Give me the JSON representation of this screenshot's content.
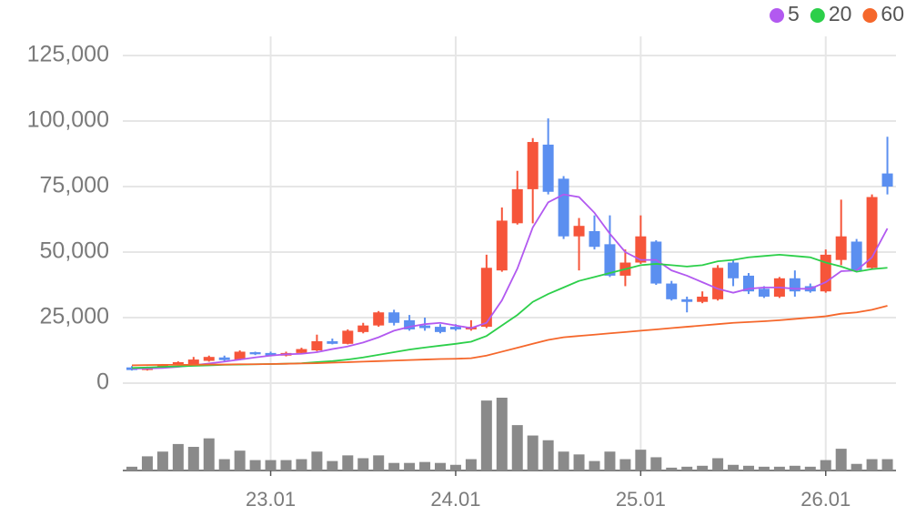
{
  "chart_data": {
    "type": "candlestick",
    "categories": [
      null,
      null,
      null,
      null,
      null,
      null,
      null,
      null,
      null,
      "23.01",
      null,
      null,
      null,
      null,
      null,
      null,
      null,
      null,
      null,
      null,
      null,
      "24.01",
      null,
      null,
      null,
      null,
      null,
      null,
      null,
      null,
      null,
      null,
      null,
      "25.01",
      null,
      null,
      null,
      null,
      null,
      null,
      null,
      null,
      null,
      null,
      null,
      "26.01",
      null,
      null,
      null,
      null
    ],
    "open": [
      6000,
      5000,
      6000,
      7000,
      7000,
      8500,
      9800,
      9000,
      11800,
      11500,
      10500,
      11500,
      12500,
      16000,
      15000,
      19500,
      22000,
      27000,
      24000,
      22000,
      21500,
      21500,
      20500,
      21500,
      43000,
      61000,
      74000,
      91000,
      78000,
      56000,
      58000,
      53000,
      41000,
      46000,
      54000,
      38000,
      32000,
      31000,
      32000,
      46000,
      41000,
      36000,
      33000,
      40000,
      37000,
      35000,
      47000,
      54000,
      44000,
      80000
    ],
    "high": [
      6500,
      6300,
      7300,
      8300,
      10000,
      10500,
      10500,
      12500,
      12000,
      12000,
      12000,
      13500,
      18500,
      17000,
      20500,
      23000,
      27500,
      28000,
      26000,
      25000,
      22500,
      22500,
      24000,
      49000,
      67000,
      81000,
      93500,
      101000,
      79000,
      63000,
      64000,
      64000,
      51000,
      64000,
      54500,
      39000,
      33000,
      35000,
      45000,
      47000,
      42000,
      37000,
      40500,
      43000,
      38000,
      51000,
      70000,
      55000,
      72000,
      94000
    ],
    "low": [
      4800,
      4800,
      5700,
      6700,
      6800,
      8200,
      8300,
      8700,
      10700,
      10200,
      10200,
      11200,
      12200,
      14800,
      14800,
      19000,
      21500,
      22000,
      20000,
      20000,
      19000,
      20000,
      20000,
      21000,
      42500,
      60500,
      61000,
      72000,
      55000,
      43000,
      51000,
      40500,
      37000,
      45500,
      37500,
      31500,
      27000,
      30500,
      31500,
      37000,
      34000,
      32500,
      32500,
      33000,
      34500,
      34500,
      45000,
      42500,
      43500,
      72000
    ],
    "close": [
      5000,
      6000,
      7000,
      8000,
      9000,
      10000,
      8800,
      12000,
      11000,
      10500,
      11500,
      13000,
      16000,
      15000,
      20000,
      22000,
      27000,
      23000,
      20500,
      21000,
      19500,
      20500,
      21500,
      44000,
      62000,
      74000,
      92000,
      73000,
      56000,
      60000,
      52000,
      41000,
      46000,
      56000,
      38000,
      32000,
      31000,
      33000,
      44000,
      40000,
      35000,
      33000,
      40000,
      35000,
      35000,
      49000,
      56000,
      43000,
      71000,
      75000
    ],
    "volume": [
      4,
      15,
      20,
      28,
      25,
      34,
      12,
      21,
      11,
      11,
      11,
      12,
      20,
      10,
      16,
      13,
      16,
      8,
      8,
      9,
      8,
      6,
      12,
      74,
      77,
      48,
      37,
      32,
      20,
      17,
      10,
      20,
      12,
      22,
      14,
      3,
      4,
      5,
      13,
      6,
      5,
      4,
      4,
      5,
      4,
      11,
      23,
      7,
      12,
      12
    ],
    "up_color": "#f6553a",
    "down_color": "#5b8ff0",
    "volume_color": "#8a8a8a",
    "series": [
      {
        "name": "5",
        "color": "#b259f0",
        "values": [
          5500,
          5600,
          5800,
          6200,
          6800,
          7500,
          8200,
          9000,
          9800,
          10500,
          11000,
          11200,
          11800,
          13000,
          14000,
          15500,
          17500,
          20000,
          21500,
          22500,
          23000,
          22000,
          21000,
          23000,
          31600,
          43700,
          59400,
          69000,
          72000,
          71000,
          65000,
          57000,
          50000,
          47000,
          47000,
          43000,
          41000,
          38500,
          36000,
          34500,
          36000,
          36500,
          36500,
          36000,
          36000,
          38500,
          42700,
          43000,
          48000,
          59000
        ]
      },
      {
        "name": "20",
        "color": "#2ccf4a",
        "values": [
          5800,
          6000,
          6200,
          6400,
          6600,
          6800,
          7000,
          7100,
          7200,
          7300,
          7400,
          7600,
          8000,
          8400,
          9000,
          9800,
          10800,
          11800,
          12800,
          13600,
          14300,
          15000,
          15800,
          18000,
          22000,
          26000,
          31000,
          34000,
          36500,
          39000,
          40500,
          42000,
          43500,
          45000,
          45500,
          45000,
          44500,
          45000,
          46500,
          47000,
          48000,
          48500,
          49000,
          48500,
          48000,
          46000,
          44500,
          42500,
          43500,
          44000
        ]
      },
      {
        "name": "60",
        "color": "#f5672b",
        "values": [
          6800,
          6900,
          7000,
          7000,
          7000,
          7100,
          7100,
          7200,
          7200,
          7300,
          7400,
          7500,
          7600,
          7800,
          8000,
          8200,
          8400,
          8600,
          8800,
          9000,
          9200,
          9300,
          9500,
          10500,
          12000,
          13500,
          15000,
          16500,
          17500,
          18000,
          18500,
          19000,
          19500,
          20000,
          20500,
          21000,
          21500,
          22000,
          22500,
          23000,
          23300,
          23600,
          24000,
          24500,
          25000,
          25500,
          26500,
          27000,
          28000,
          29500
        ]
      }
    ],
    "ylim": [
      0,
      125000
    ],
    "yticks": [
      0,
      {
        "value": 25000,
        "label": "25,000"
      },
      {
        "value": 50000,
        "label": "50,000"
      },
      {
        "value": 75000,
        "label": "75,000"
      },
      {
        "value": 100000,
        "label": "100,000"
      },
      {
        "value": 125000,
        "label": "125,000"
      }
    ],
    "grid": true,
    "legend": "top-right"
  }
}
